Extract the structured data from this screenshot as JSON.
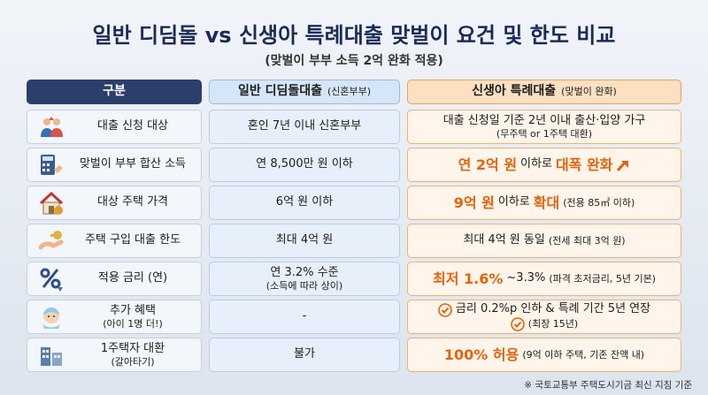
{
  "header": {
    "title": "일반 디딤돌 vs 신생아 특례대출 맞벌이 요건 및 한도 비교",
    "subtitle": "(맞벌이 부부 소득 2억 완화 적용)"
  },
  "table": {
    "columns": [
      {
        "label": "구분"
      },
      {
        "label": "일반 디딤돌대출",
        "note": "(신혼부부)"
      },
      {
        "label": "신생아 특례대출",
        "note": "(맞벌이 완화)"
      }
    ],
    "rows": [
      {
        "label": [
          "대출 신청 대상"
        ],
        "standard": [
          "혼인 7년 이내 신혼부부"
        ],
        "newborn": [
          {
            "segments": [
              {
                "text": "대출 신청일 기준 2년 이내 출산·입양 가구",
                "style": "plain"
              }
            ]
          },
          {
            "segments": [
              {
                "text": "(무주택 or 1주택 대환)",
                "style": "small"
              }
            ]
          }
        ]
      },
      {
        "label": [
          "맞벌이 부부 합산 소득"
        ],
        "standard": [
          "연 8,500만 원 이하"
        ],
        "newborn": [
          {
            "segments": [
              {
                "text": "연 2억 원",
                "style": "em"
              },
              {
                "text": "이하로",
                "style": "plain"
              },
              {
                "text": "대폭 완화",
                "style": "em"
              }
            ],
            "marker": "arrow"
          }
        ]
      },
      {
        "label": [
          "대상 주택 가격"
        ],
        "standard": [
          "6억 원 이하"
        ],
        "newborn": [
          {
            "segments": [
              {
                "text": "9억 원",
                "style": "em"
              },
              {
                "text": "이하로",
                "style": "plain"
              },
              {
                "text": "확대",
                "style": "em"
              },
              {
                "text": "(전용 85㎡ 이하)",
                "style": "small"
              }
            ]
          }
        ]
      },
      {
        "label": [
          "주택 구입 대출 한도"
        ],
        "standard": [
          "최대 4억 원"
        ],
        "newborn": [
          {
            "segments": [
              {
                "text": "최대 4억 원 동일",
                "style": "plain"
              },
              {
                "text": "(전세 최대 3억 원)",
                "style": "small"
              }
            ]
          }
        ]
      },
      {
        "label": [
          "적용 금리 (연)"
        ],
        "standard": [
          "연 3.2% 수준",
          "(소득에 따라 상이)"
        ],
        "newborn": [
          {
            "segments": [
              {
                "text": "최저 1.6%",
                "style": "em"
              },
              {
                "text": "~3.3%",
                "style": "plain"
              },
              {
                "text": "(파격 초저금리, 5년 기본)",
                "style": "small"
              }
            ]
          }
        ]
      },
      {
        "label": [
          "추가 혜택",
          "(아이 1명 더!)"
        ],
        "standard": [
          "-"
        ],
        "newborn": [
          {
            "segments": [
              {
                "text": "금리 0.2%p 인하 & 특례 기간 5년 연장",
                "style": "plain"
              }
            ],
            "marker": "check"
          },
          {
            "segments": [
              {
                "text": "(최장 15년)",
                "style": "small"
              }
            ],
            "marker": "check"
          }
        ]
      },
      {
        "label": [
          "1주택자 대환",
          "(갈아타기)"
        ],
        "standard": [
          "불가"
        ],
        "newborn": [
          {
            "segments": [
              {
                "text": "100% 허용",
                "style": "em"
              },
              {
                "text": "(9억 이하 주택, 기존 잔액 내)",
                "style": "small"
              }
            ]
          }
        ]
      }
    ]
  },
  "footnote": "※ 국토교통부 주택도시기금 최신 지침 기준"
}
